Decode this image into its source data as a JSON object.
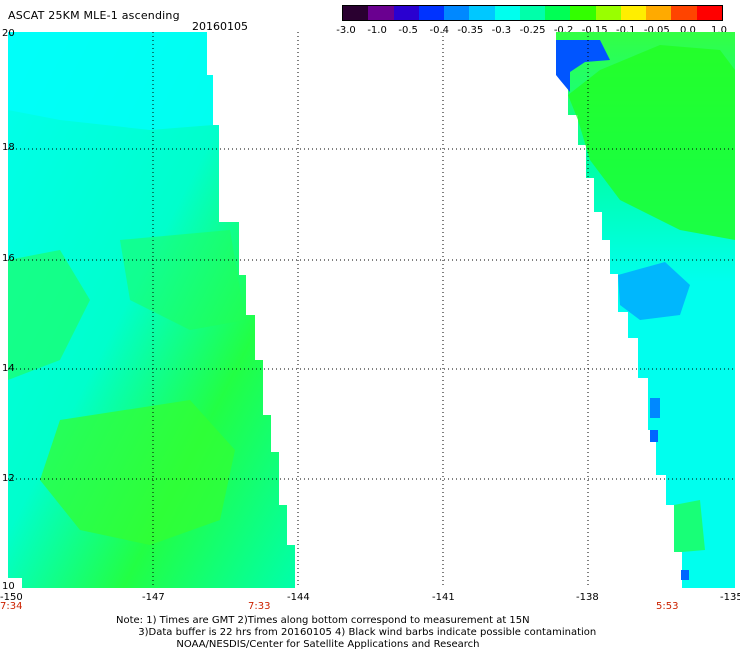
{
  "title": "ASCAT 25KM MLE-1 ascending",
  "date": "20160105",
  "colorbar": {
    "tick_labels": [
      "-3.0",
      "-1.0",
      "-0.5",
      "-0.4",
      "-0.35",
      "-0.3",
      "-0.25",
      "-0.2",
      "-0.15",
      "-0.1",
      "-0.05",
      "0.0",
      "1.0"
    ],
    "colors": [
      "#2a0030",
      "#6a0090",
      "#2a00d0",
      "#0033ff",
      "#0088ff",
      "#00c8ff",
      "#00ffee",
      "#00ffaa",
      "#00ff55",
      "#33ff00",
      "#99ff00",
      "#ffee00",
      "#ffaa00",
      "#ff4400",
      "#ff0000"
    ]
  },
  "map": {
    "lon_labels": [
      "-150",
      "-147",
      "-144",
      "-141",
      "-138",
      "-135"
    ],
    "lat_labels": [
      "20",
      "18",
      "16",
      "14",
      "12",
      "10"
    ],
    "time_labels": [
      "7:34",
      "7:33",
      "5:53"
    ],
    "time_color": "#cc2200",
    "colors": {
      "cyan": "#00ffee",
      "aqua": "#00ffcc",
      "green": "#00ff66",
      "bright_green": "#22ff22",
      "blue": "#0088ff",
      "deep_blue": "#0044ff"
    }
  },
  "note": {
    "line1": "Note: 1) Times are GMT 2)Times along bottom correspond to measurement at 15N",
    "line2": "3)Data buffer is 22 hrs from 20160105 4) Black wind barbs indicate possible contamination",
    "line3": "NOAA/NESDIS/Center for Satellite Applications and Research"
  }
}
